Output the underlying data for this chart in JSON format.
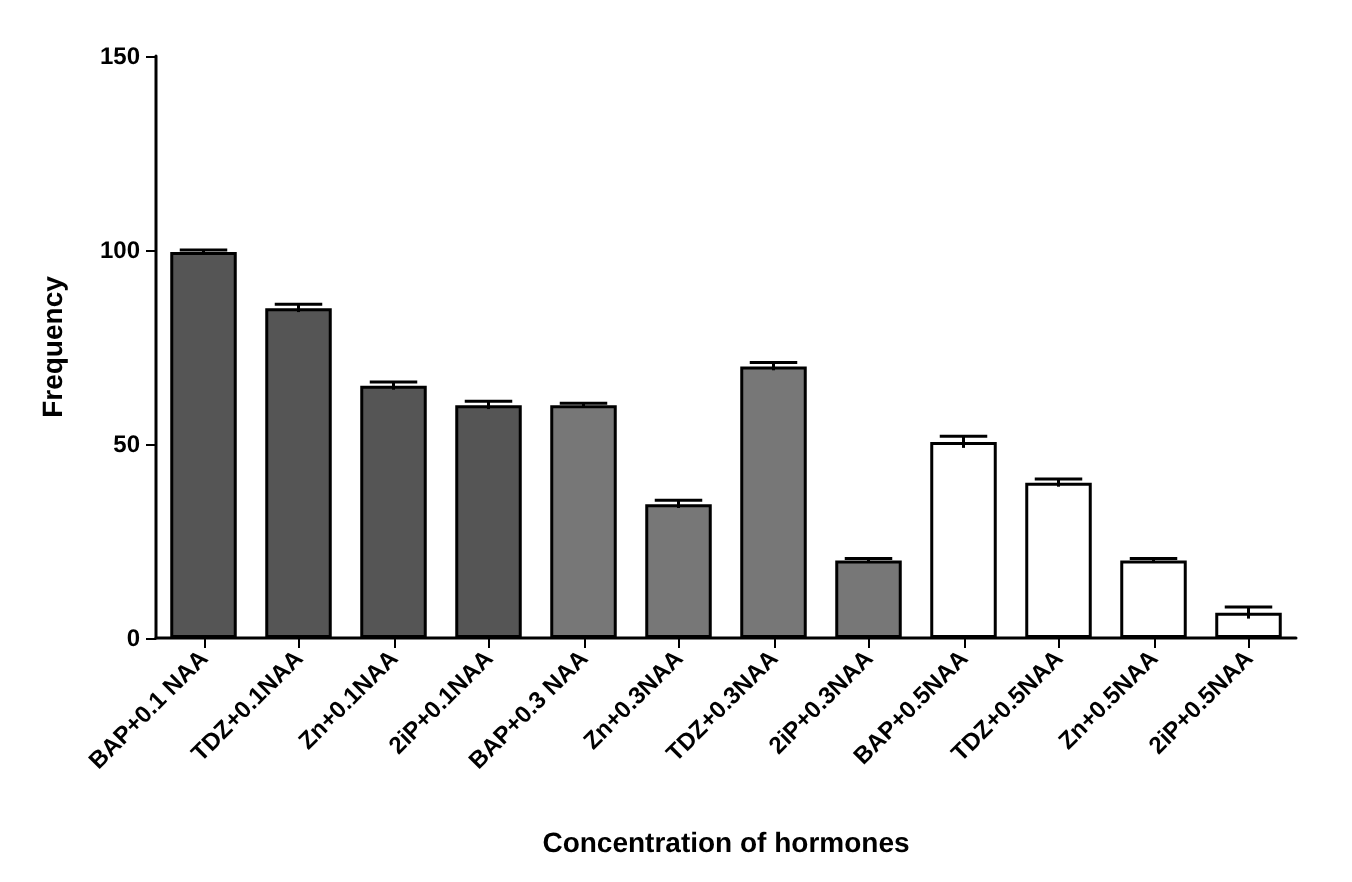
{
  "chart_data": {
    "type": "bar",
    "xlabel": "Concentration of hormones",
    "ylabel": "Frequency",
    "categories": [
      "BAP+0.1 NAA",
      "TDZ+0.1NAA",
      "Zn+0.1NAA",
      "2iP+0.1NAA",
      "BAP+0.3 NAA",
      "Zn+0.3NAA",
      "TDZ+0.3NAA",
      "2iP+0.3NAA",
      "BAP+0.5NAA",
      "TDZ+0.5NAA",
      "Zn+0.5NAA",
      "2iP+0.5NAA"
    ],
    "values": [
      99.5,
      85,
      65,
      60,
      60,
      34.5,
      70,
      20,
      50.5,
      40,
      20,
      6.5
    ],
    "errors": [
      0.5,
      1,
      1,
      1,
      0.5,
      1,
      1,
      0.5,
      1.5,
      1,
      0.5,
      1.5
    ],
    "colors": [
      "#555555",
      "#555555",
      "#555555",
      "#555555",
      "#777777",
      "#777777",
      "#777777",
      "#777777",
      "#ffffff",
      "#ffffff",
      "#ffffff",
      "#ffffff"
    ],
    "ylim": [
      0,
      150
    ],
    "yticks": [
      0,
      50,
      100,
      150
    ]
  }
}
